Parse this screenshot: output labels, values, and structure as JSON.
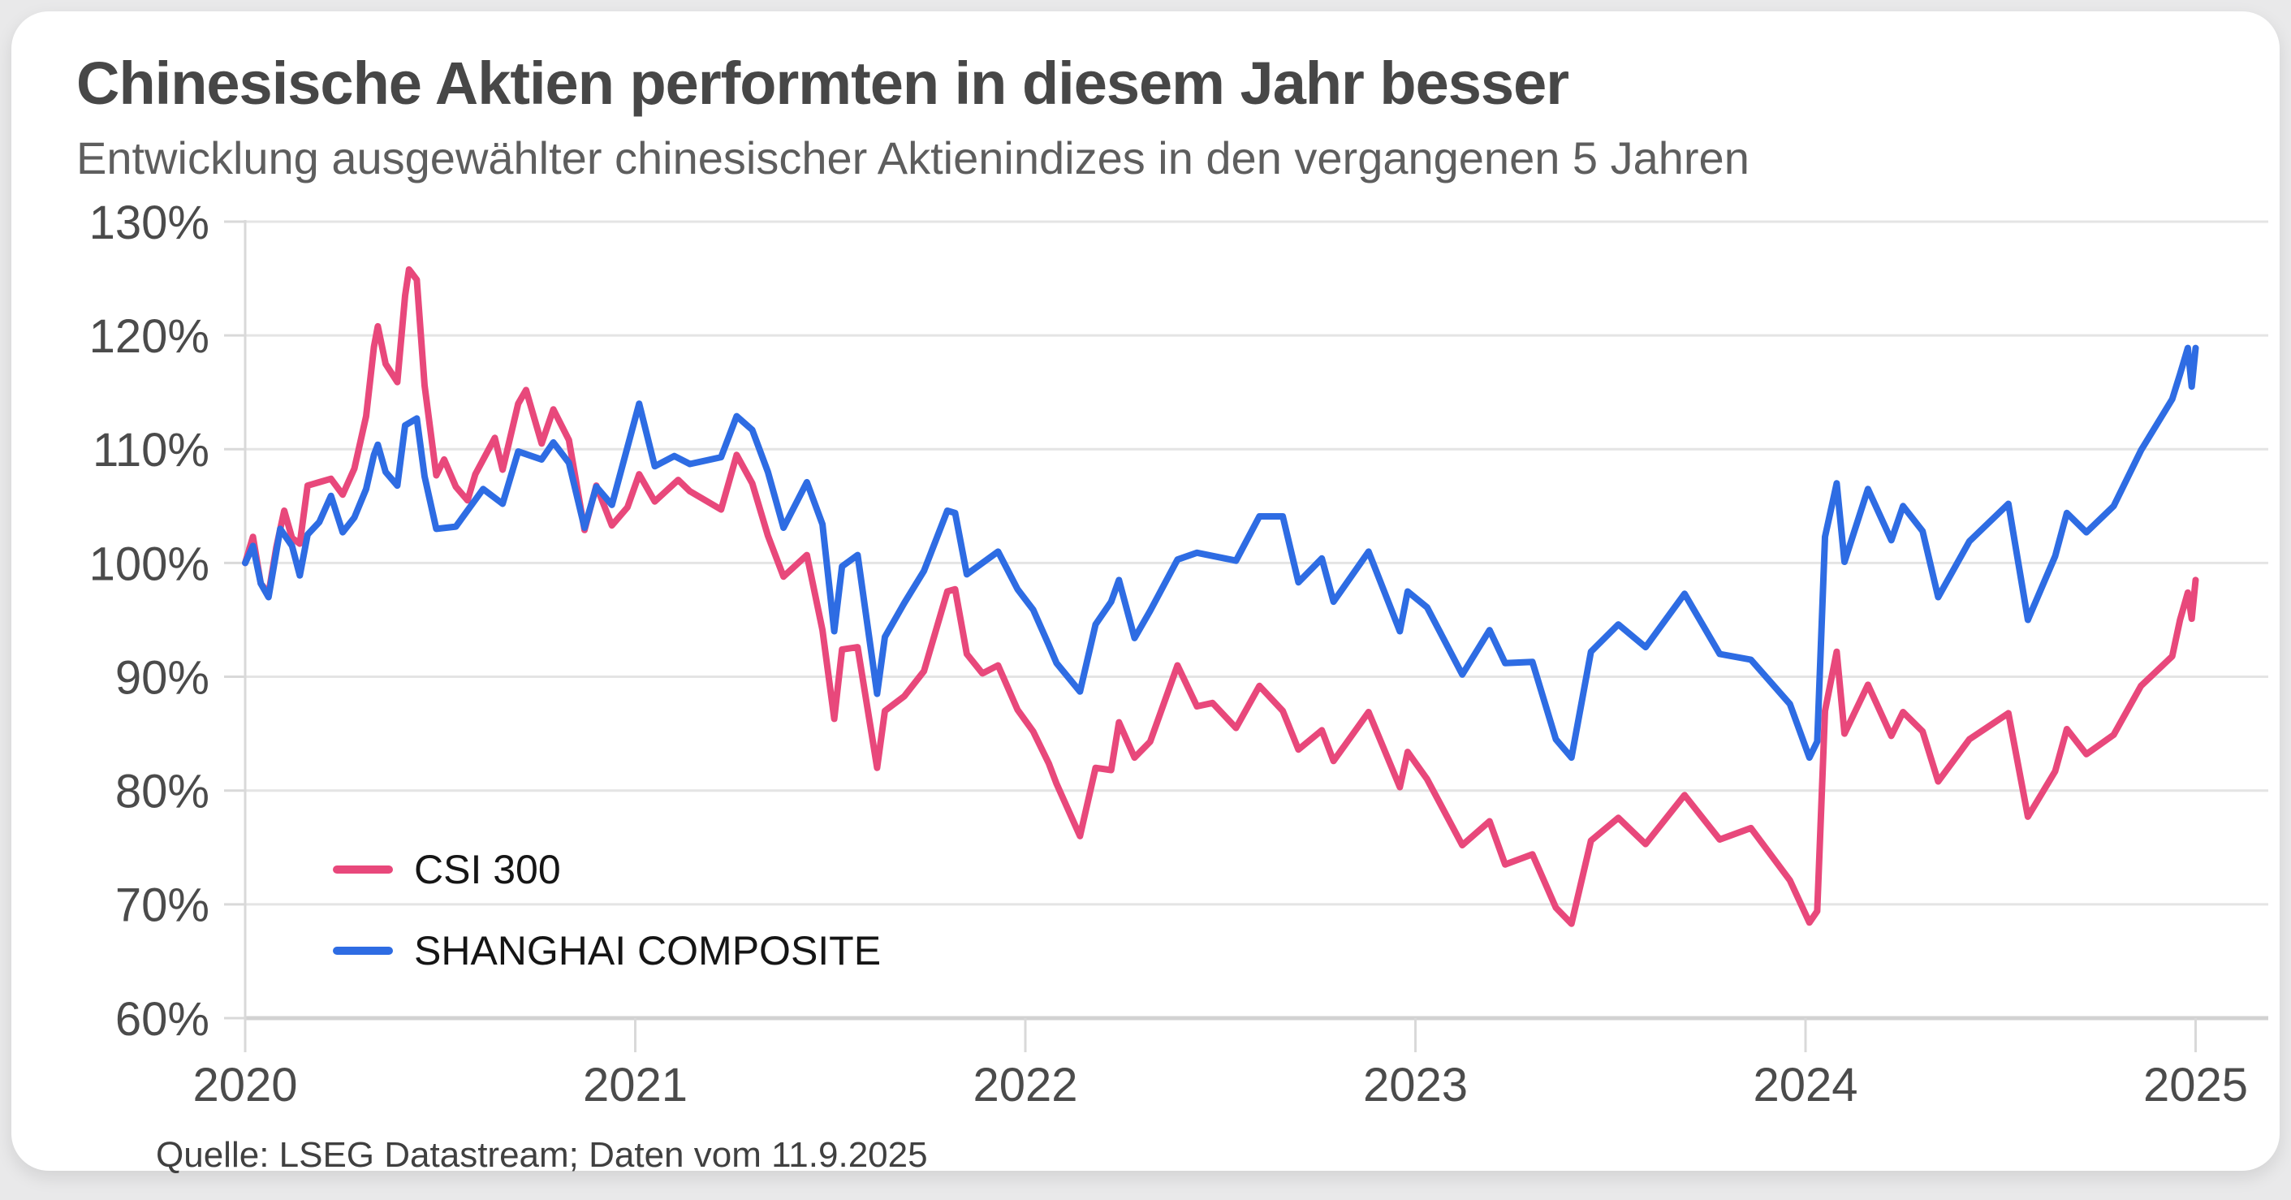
{
  "header": {
    "title": "Chinesische Aktien performten in diesem Jahr besser",
    "subtitle": "Entwicklung ausgewählter chinesischer Aktienindizes in den vergangenen 5 Jahren"
  },
  "source": {
    "text": "Quelle: LSEG Datastream; Daten vom 11.9.2025"
  },
  "legend": {
    "items": [
      {
        "label": "CSI 300",
        "color": "#e8487b"
      },
      {
        "label": "SHANGHAI COMPOSITE",
        "color": "#2e6ce3"
      }
    ]
  },
  "chart_data": {
    "type": "line",
    "title": "Chinesische Aktien performten in diesem Jahr besser",
    "subtitle": "Entwicklung ausgewählter chinesischer Aktienindizes in den vergangenen 5 Jahren",
    "xlabel": "",
    "ylabel": "",
    "x_unit": "years since 11.9.2020",
    "xlim": [
      0,
      5
    ],
    "ylim": [
      60,
      130
    ],
    "grid": true,
    "legend_position": "inside-lower-left",
    "colors": {
      "grid": "#e4e4e4",
      "axis": "#d9d9d9",
      "baseline": "#d2d2d2",
      "labels": "#4b4b4b"
    },
    "y_ticks": [
      {
        "v": 130,
        "label": "130%"
      },
      {
        "v": 120,
        "label": "120%"
      },
      {
        "v": 110,
        "label": "110%"
      },
      {
        "v": 100,
        "label": "100%"
      },
      {
        "v": 90,
        "label": "90%"
      },
      {
        "v": 80,
        "label": "80%"
      },
      {
        "v": 70,
        "label": "70%"
      },
      {
        "v": 60,
        "label": "60%"
      }
    ],
    "x_ticks": [
      {
        "t": 0,
        "label": "2020"
      },
      {
        "t": 1,
        "label": "2021"
      },
      {
        "t": 2,
        "label": "2022"
      },
      {
        "t": 3,
        "label": "2023"
      },
      {
        "t": 4,
        "label": "2024"
      },
      {
        "t": 5,
        "label": "2025"
      }
    ],
    "series": [
      {
        "name": "CSI 300",
        "color": "#e8487b",
        "points": [
          [
            0,
            100
          ],
          [
            0.02,
            102.3
          ],
          [
            0.04,
            98.2
          ],
          [
            0.06,
            97.3
          ],
          [
            0.08,
            101.4
          ],
          [
            0.1,
            104.6
          ],
          [
            0.12,
            102.2
          ],
          [
            0.14,
            101.7
          ],
          [
            0.16,
            106.8
          ],
          [
            0.19,
            107.1
          ],
          [
            0.22,
            107.4
          ],
          [
            0.25,
            106
          ],
          [
            0.28,
            108.3
          ],
          [
            0.31,
            112.9
          ],
          [
            0.33,
            119
          ],
          [
            0.34,
            120.8
          ],
          [
            0.36,
            117.5
          ],
          [
            0.39,
            115.9
          ],
          [
            0.41,
            123.5
          ],
          [
            0.42,
            125.8
          ],
          [
            0.44,
            124.9
          ],
          [
            0.46,
            115.6
          ],
          [
            0.49,
            107.7
          ],
          [
            0.51,
            109.1
          ],
          [
            0.54,
            106.7
          ],
          [
            0.57,
            105.5
          ],
          [
            0.59,
            107.8
          ],
          [
            0.64,
            111
          ],
          [
            0.66,
            108.2
          ],
          [
            0.7,
            114
          ],
          [
            0.72,
            115.2
          ],
          [
            0.76,
            110.5
          ],
          [
            0.79,
            113.5
          ],
          [
            0.83,
            110.8
          ],
          [
            0.87,
            102.9
          ],
          [
            0.9,
            106.8
          ],
          [
            0.94,
            103.3
          ],
          [
            0.98,
            104.9
          ],
          [
            1.01,
            107.8
          ],
          [
            1.05,
            105.4
          ],
          [
            1.11,
            107.3
          ],
          [
            1.14,
            106.3
          ],
          [
            1.22,
            104.7
          ],
          [
            1.26,
            109.5
          ],
          [
            1.3,
            107
          ],
          [
            1.34,
            102.4
          ],
          [
            1.38,
            98.8
          ],
          [
            1.44,
            100.7
          ],
          [
            1.48,
            94.1
          ],
          [
            1.51,
            86.3
          ],
          [
            1.53,
            92.4
          ],
          [
            1.57,
            92.6
          ],
          [
            1.62,
            82
          ],
          [
            1.64,
            87
          ],
          [
            1.69,
            88.3
          ],
          [
            1.74,
            90.5
          ],
          [
            1.8,
            97.5
          ],
          [
            1.82,
            97.7
          ],
          [
            1.85,
            92
          ],
          [
            1.89,
            90.3
          ],
          [
            1.93,
            91
          ],
          [
            1.98,
            87.1
          ],
          [
            2.02,
            85.2
          ],
          [
            2.06,
            82.4
          ],
          [
            2.08,
            80.6
          ],
          [
            2.14,
            76
          ],
          [
            2.18,
            82
          ],
          [
            2.22,
            81.8
          ],
          [
            2.24,
            86
          ],
          [
            2.28,
            82.9
          ],
          [
            2.32,
            84.3
          ],
          [
            2.39,
            91
          ],
          [
            2.44,
            87.4
          ],
          [
            2.48,
            87.7
          ],
          [
            2.54,
            85.5
          ],
          [
            2.6,
            89.2
          ],
          [
            2.66,
            87
          ],
          [
            2.7,
            83.6
          ],
          [
            2.76,
            85.3
          ],
          [
            2.79,
            82.6
          ],
          [
            2.88,
            86.9
          ],
          [
            2.96,
            80.3
          ],
          [
            2.98,
            83.4
          ],
          [
            3.03,
            81
          ],
          [
            3.12,
            75.2
          ],
          [
            3.19,
            77.3
          ],
          [
            3.23,
            73.5
          ],
          [
            3.3,
            74.4
          ],
          [
            3.36,
            69.7
          ],
          [
            3.4,
            68.3
          ],
          [
            3.45,
            75.6
          ],
          [
            3.52,
            77.6
          ],
          [
            3.59,
            75.3
          ],
          [
            3.69,
            79.6
          ],
          [
            3.78,
            75.7
          ],
          [
            3.86,
            76.7
          ],
          [
            3.96,
            72.1
          ],
          [
            4.01,
            68.4
          ],
          [
            4.03,
            69.4
          ],
          [
            4.05,
            87
          ],
          [
            4.08,
            92.2
          ],
          [
            4.1,
            85
          ],
          [
            4.16,
            89.3
          ],
          [
            4.22,
            84.8
          ],
          [
            4.25,
            86.9
          ],
          [
            4.3,
            85.2
          ],
          [
            4.34,
            80.8
          ],
          [
            4.42,
            84.5
          ],
          [
            4.52,
            86.8
          ],
          [
            4.57,
            77.7
          ],
          [
            4.64,
            81.7
          ],
          [
            4.67,
            85.4
          ],
          [
            4.72,
            83.2
          ],
          [
            4.79,
            84.9
          ],
          [
            4.86,
            89.2
          ],
          [
            4.94,
            91.8
          ],
          [
            4.96,
            95
          ],
          [
            4.98,
            97.4
          ],
          [
            4.99,
            95.1
          ],
          [
            5,
            98.5
          ]
        ]
      },
      {
        "name": "SHANGHAI COMPOSITE",
        "color": "#2e6ce3",
        "points": [
          [
            0,
            100
          ],
          [
            0.02,
            101.5
          ],
          [
            0.04,
            98.2
          ],
          [
            0.06,
            97
          ],
          [
            0.09,
            103
          ],
          [
            0.12,
            101.5
          ],
          [
            0.14,
            98.9
          ],
          [
            0.16,
            102.5
          ],
          [
            0.19,
            103.6
          ],
          [
            0.22,
            105.9
          ],
          [
            0.25,
            102.7
          ],
          [
            0.28,
            104
          ],
          [
            0.31,
            106.5
          ],
          [
            0.33,
            109.5
          ],
          [
            0.34,
            110.4
          ],
          [
            0.36,
            108
          ],
          [
            0.39,
            106.8
          ],
          [
            0.41,
            112.1
          ],
          [
            0.44,
            112.7
          ],
          [
            0.46,
            107.6
          ],
          [
            0.49,
            103
          ],
          [
            0.54,
            103.2
          ],
          [
            0.61,
            106.5
          ],
          [
            0.66,
            105.2
          ],
          [
            0.7,
            109.8
          ],
          [
            0.76,
            109.1
          ],
          [
            0.79,
            110.6
          ],
          [
            0.83,
            108.8
          ],
          [
            0.87,
            103.1
          ],
          [
            0.9,
            106.7
          ],
          [
            0.94,
            105.1
          ],
          [
            1.01,
            114
          ],
          [
            1.05,
            108.5
          ],
          [
            1.1,
            109.4
          ],
          [
            1.14,
            108.7
          ],
          [
            1.22,
            109.3
          ],
          [
            1.26,
            112.9
          ],
          [
            1.3,
            111.7
          ],
          [
            1.34,
            108
          ],
          [
            1.38,
            103.1
          ],
          [
            1.44,
            107.1
          ],
          [
            1.48,
            103.4
          ],
          [
            1.51,
            94
          ],
          [
            1.53,
            99.7
          ],
          [
            1.57,
            100.7
          ],
          [
            1.62,
            88.5
          ],
          [
            1.64,
            93.5
          ],
          [
            1.69,
            96.5
          ],
          [
            1.74,
            99.3
          ],
          [
            1.8,
            104.6
          ],
          [
            1.82,
            104.4
          ],
          [
            1.85,
            99
          ],
          [
            1.89,
            100
          ],
          [
            1.93,
            101
          ],
          [
            1.98,
            97.7
          ],
          [
            2.02,
            95.9
          ],
          [
            2.06,
            92.8
          ],
          [
            2.08,
            91.2
          ],
          [
            2.14,
            88.7
          ],
          [
            2.18,
            94.6
          ],
          [
            2.22,
            96.6
          ],
          [
            2.24,
            98.5
          ],
          [
            2.28,
            93.4
          ],
          [
            2.32,
            95.8
          ],
          [
            2.39,
            100.3
          ],
          [
            2.44,
            100.9
          ],
          [
            2.54,
            100.2
          ],
          [
            2.6,
            104.1
          ],
          [
            2.66,
            104.1
          ],
          [
            2.7,
            98.3
          ],
          [
            2.76,
            100.4
          ],
          [
            2.79,
            96.6
          ],
          [
            2.88,
            101
          ],
          [
            2.96,
            94
          ],
          [
            2.98,
            97.5
          ],
          [
            3.03,
            96.1
          ],
          [
            3.12,
            90.2
          ],
          [
            3.19,
            94.1
          ],
          [
            3.23,
            91.2
          ],
          [
            3.3,
            91.3
          ],
          [
            3.36,
            84.5
          ],
          [
            3.4,
            82.9
          ],
          [
            3.45,
            92.2
          ],
          [
            3.52,
            94.6
          ],
          [
            3.59,
            92.6
          ],
          [
            3.69,
            97.3
          ],
          [
            3.78,
            92
          ],
          [
            3.86,
            91.5
          ],
          [
            3.96,
            87.6
          ],
          [
            4.01,
            82.9
          ],
          [
            4.03,
            84.3
          ],
          [
            4.05,
            102.3
          ],
          [
            4.08,
            107
          ],
          [
            4.1,
            100.1
          ],
          [
            4.16,
            106.5
          ],
          [
            4.22,
            102
          ],
          [
            4.25,
            105
          ],
          [
            4.3,
            102.8
          ],
          [
            4.34,
            97
          ],
          [
            4.42,
            101.9
          ],
          [
            4.52,
            105.2
          ],
          [
            4.57,
            95
          ],
          [
            4.64,
            100.6
          ],
          [
            4.67,
            104.4
          ],
          [
            4.72,
            102.7
          ],
          [
            4.79,
            105
          ],
          [
            4.86,
            109.9
          ],
          [
            4.94,
            114.4
          ],
          [
            4.96,
            116.6
          ],
          [
            4.98,
            118.9
          ],
          [
            4.99,
            115.5
          ],
          [
            5,
            118.9
          ]
        ]
      }
    ]
  }
}
